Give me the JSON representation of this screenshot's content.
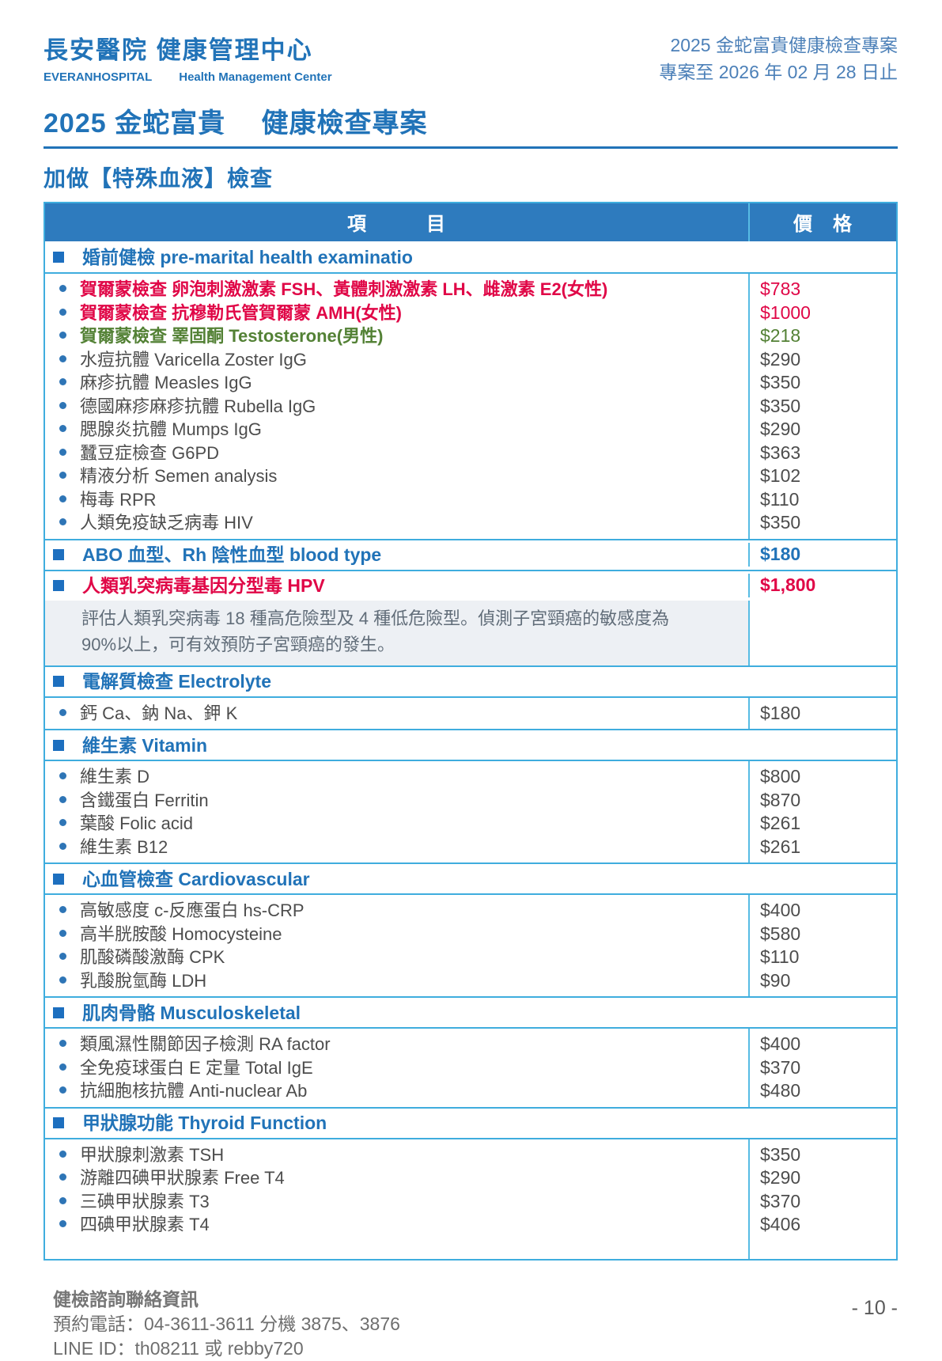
{
  "header": {
    "hospital_cn": "長安醫院  健康管理中心",
    "hospital_en": "EVERANHOSPITAL",
    "center_en": "Health Management Center",
    "promo_line1": "2025 金蛇富貴健康檢查專案",
    "promo_line2": "專案至 2026 年 02 月 28 日止"
  },
  "title": "2025 金蛇富貴　 健康檢查專案",
  "section_heading": "加做【特殊血液】檢查",
  "colors": {
    "accent_blue": "#2173b8",
    "header_bar_blue": "#2e7bbe",
    "red": "#e00747",
    "green": "#538135",
    "item_gray": "#4d4d4d",
    "border_blue": "#3fadde",
    "note_background": "#edf0f4"
  },
  "table": {
    "header": {
      "item_col": "項　　　目",
      "price_col": "價　格"
    },
    "sections": [
      {
        "category": {
          "label": "婚前健檢 pre-marital health examinatio",
          "price": "",
          "color": "blue"
        },
        "items": [
          {
            "label": "賀爾蒙檢查  卵泡刺激激素  FSH、黃體刺激激素  LH、雌激素  E2(女性)",
            "price": "$783",
            "color": "red"
          },
          {
            "label": "賀爾蒙檢查  抗穆勒氏管賀爾蒙 AMH(女性)",
            "price": "$1000",
            "color": "red"
          },
          {
            "label": "賀爾蒙檢查  睪固酮  Testosterone(男性)",
            "price": "$218",
            "color": "green"
          },
          {
            "label": "水痘抗體  Varicella Zoster IgG",
            "price": "$290",
            "color": "gray"
          },
          {
            "label": "麻疹抗體  Measles IgG",
            "price": "$350",
            "color": "gray"
          },
          {
            "label": "德國麻疹麻疹抗體  Rubella IgG",
            "price": "$350",
            "color": "gray"
          },
          {
            "label": "腮腺炎抗體  Mumps IgG",
            "price": "$290",
            "color": "gray"
          },
          {
            "label": "蠶豆症檢查  G6PD",
            "price": "$363",
            "color": "gray"
          },
          {
            "label": "精液分析  Semen analysis",
            "price": "$102",
            "color": "gray"
          },
          {
            "label": "梅毒  RPR",
            "price": "$110",
            "color": "gray"
          },
          {
            "label": "人類免疫缺乏病毒  HIV",
            "price": "$350",
            "color": "gray"
          }
        ]
      },
      {
        "category": {
          "label": "ABO 血型、Rh 陰性血型  blood type",
          "price": "$180",
          "color": "blue"
        },
        "items": []
      },
      {
        "category": {
          "label": "人類乳突病毒基因分型毒 HPV",
          "price": "$1,800",
          "color": "red"
        },
        "note": "評估人類乳突病毒 18 種高危險型及 4 種低危險型。偵測子宮頸癌的敏感度為 90%以上，可有效預防子宮頸癌的發生。",
        "items": []
      },
      {
        "category": {
          "label": "電解質檢查 Electrolyte",
          "price": "",
          "color": "blue"
        },
        "items": [
          {
            "label": "鈣 Ca、鈉 Na、鉀  K",
            "price": "$180",
            "color": "gray"
          }
        ]
      },
      {
        "category": {
          "label": "維生素 Vitamin",
          "price": "",
          "color": "blue"
        },
        "items": [
          {
            "label": "維生素 D",
            "price": "$800",
            "color": "gray"
          },
          {
            "label": "含鐵蛋白  Ferritin",
            "price": "$870",
            "color": "gray"
          },
          {
            "label": "葉酸  Folic acid",
            "price": "$261",
            "color": "gray"
          },
          {
            "label": "維生素 B12",
            "price": "$261",
            "color": "gray"
          }
        ]
      },
      {
        "category": {
          "label": "心血管檢查 Cardiovascular",
          "price": "",
          "color": "blue"
        },
        "items": [
          {
            "label": "高敏感度 c-反應蛋白  hs-CRP",
            "price": "$400",
            "color": "gray"
          },
          {
            "label": "高半胱胺酸  Homocysteine",
            "price": "$580",
            "color": "gray"
          },
          {
            "label": "肌酸磷酸激酶  CPK",
            "price": "$110",
            "color": "gray"
          },
          {
            "label": "乳酸脫氫酶  LDH",
            "price": "$90",
            "color": "gray"
          }
        ]
      },
      {
        "category": {
          "label": "肌肉骨骼 Musculoskeletal",
          "price": "",
          "color": "blue"
        },
        "items": [
          {
            "label": "類風濕性關節因子檢測  RA factor",
            "price": "$400",
            "color": "gray"
          },
          {
            "label": "全免疫球蛋白 E 定量 Total IgE",
            "price": "$370",
            "color": "gray"
          },
          {
            "label": "抗細胞核抗體 Anti-nuclear Ab",
            "price": "$480",
            "color": "gray"
          }
        ]
      },
      {
        "category": {
          "label": "甲狀腺功能 Thyroid Function",
          "price": "",
          "color": "blue"
        },
        "items": [
          {
            "label": "甲狀腺刺激素  TSH",
            "price": "$350",
            "color": "gray"
          },
          {
            "label": "游離四碘甲狀腺素  Free T4",
            "price": "$290",
            "color": "gray"
          },
          {
            "label": "三碘甲狀腺素  T3",
            "price": "$370",
            "color": "gray"
          },
          {
            "label": "四碘甲狀腺素  T4",
            "price": "$406",
            "color": "gray"
          }
        ]
      }
    ]
  },
  "footer": {
    "contact_title": "健檢諮詢聯絡資訊",
    "phone": "預約電話：04-3611-3611 分機 3875、3876",
    "line_id": "LINE ID：th08211 或 rebby720",
    "page_number": "- 10 -"
  }
}
